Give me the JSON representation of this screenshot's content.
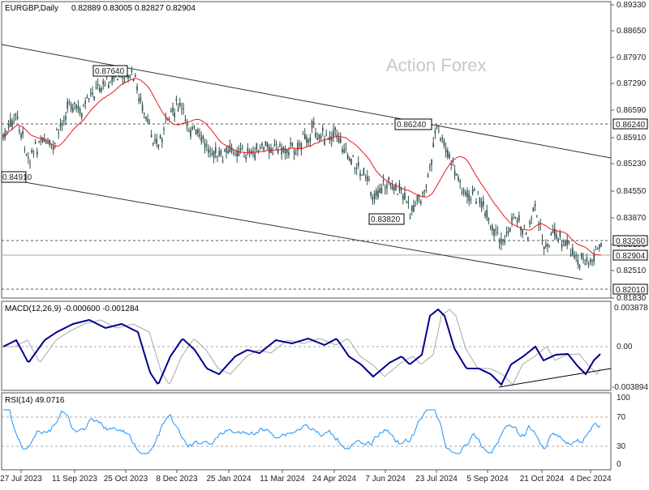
{
  "header": {
    "symbol": "EURGBP,Daily",
    "ohlc": "0.82889 0.83005 0.82827 0.82904",
    "watermark": "Action Forex"
  },
  "colors": {
    "candle": "#2f4f4f",
    "ma": "#e41a1c",
    "macd": "#00008b",
    "signal": "#a9a9a9",
    "rsi": "#1e90ff",
    "grid": "#777777",
    "price_box_bg": "#ffffff"
  },
  "price_axis": {
    "ticks": [
      "0.89330",
      "0.88650",
      "0.87970",
      "0.87290",
      "0.86590",
      "0.85910",
      "0.85230",
      "0.84550",
      "0.83870",
      "0.83190",
      "0.82510",
      "0.81830"
    ],
    "boxes": [
      "0.86240",
      "0.83260",
      "0.82904",
      "0.82010"
    ]
  },
  "annotations": {
    "high1": "0.87640",
    "high2": "0.86240",
    "low1": "0.83820",
    "left_label": "0.84910"
  },
  "macd": {
    "label": "MACD(12,26,9) -0.000600 -0.001284",
    "ticks": [
      "0.003878",
      "0.00",
      "-0.003894"
    ]
  },
  "rsi": {
    "label": "RSI(14) 49.0716",
    "ticks": [
      "100",
      "70",
      "30",
      "0"
    ]
  },
  "time_axis": [
    "27 Jul 2023",
    "11 Sep 2023",
    "25 Oct 2023",
    "8 Dec 2023",
    "25 Jan 2024",
    "11 Mar 2024",
    "24 Apr 2024",
    "7 Jun 2024",
    "23 Jul 2024",
    "5 Sep 2024",
    "21 Oct 2024",
    "4 Dec 2024"
  ],
  "chart_data": {
    "type": "line",
    "title": "EURGBP,Daily",
    "x": [
      "27 Jul 2023",
      "11 Sep 2023",
      "25 Oct 2023",
      "8 Dec 2023",
      "25 Jan 2024",
      "11 Mar 2024",
      "24 Apr 2024",
      "7 Jun 2024",
      "23 Jul 2024",
      "5 Sep 2024",
      "21 Oct 2024",
      "4 Dec 2024"
    ],
    "series": [
      {
        "values": [
          0.855,
          0.862,
          0.871,
          0.863,
          0.855,
          0.854,
          0.858,
          0.846,
          0.858,
          0.839,
          0.836,
          0.829
        ]
      }
    ],
    "ylim": [
      0.8183,
      0.8933
    ],
    "levels": [
      0.8624,
      0.8326,
      0.8201
    ],
    "macd_ylim": [
      -0.003894,
      0.003878
    ],
    "rsi_levels": [
      70,
      30
    ]
  }
}
